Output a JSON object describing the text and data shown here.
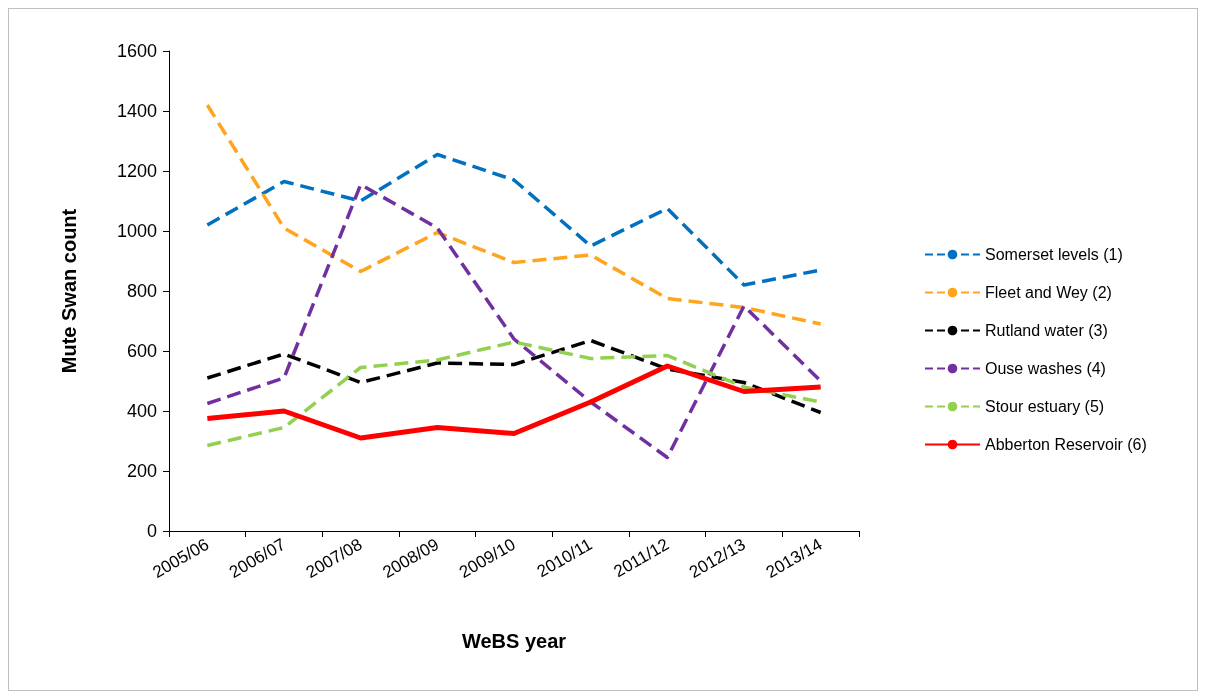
{
  "chart_data": {
    "type": "line",
    "xlabel": "WeBS year",
    "ylabel": "Mute Swan count",
    "categories": [
      "2005/06",
      "2006/07",
      "2007/08",
      "2008/09",
      "2009/10",
      "2010/11",
      "2011/12",
      "2012/13",
      "2013/14"
    ],
    "ylim": [
      0,
      1600
    ],
    "yticks": [
      0,
      200,
      400,
      600,
      800,
      1000,
      1200,
      1400,
      1600
    ],
    "grid": false,
    "legend": "right",
    "marker": "none",
    "series": [
      {
        "name": "Somerset levels (1)",
        "color": "#0070c0",
        "line_style": "dashed",
        "values": [
          1020,
          1165,
          1100,
          1255,
          1170,
          950,
          1075,
          820,
          870
        ]
      },
      {
        "name": "Fleet and Wey (2)",
        "color": "#ffa41c",
        "line_style": "dashed",
        "values": [
          1420,
          1010,
          865,
          995,
          895,
          920,
          775,
          745,
          690
        ]
      },
      {
        "name": "Rutland water (3)",
        "color": "#000000",
        "line_style": "dashed",
        "values": [
          510,
          590,
          495,
          560,
          555,
          635,
          540,
          495,
          395
        ]
      },
      {
        "name": "Ouse washes (4)",
        "color": "#7030a0",
        "line_style": "dashed",
        "values": [
          425,
          510,
          1155,
          1010,
          640,
          430,
          245,
          750,
          500
        ]
      },
      {
        "name": "Stour estuary (5)",
        "color": "#92d050",
        "line_style": "dashed",
        "values": [
          285,
          345,
          545,
          570,
          630,
          575,
          585,
          480,
          430
        ]
      },
      {
        "name": "Abberton Reservoir (6)",
        "color": "#ff0000",
        "line_style": "solid",
        "values": [
          375,
          400,
          310,
          345,
          325,
          430,
          550,
          465,
          480
        ]
      }
    ]
  }
}
